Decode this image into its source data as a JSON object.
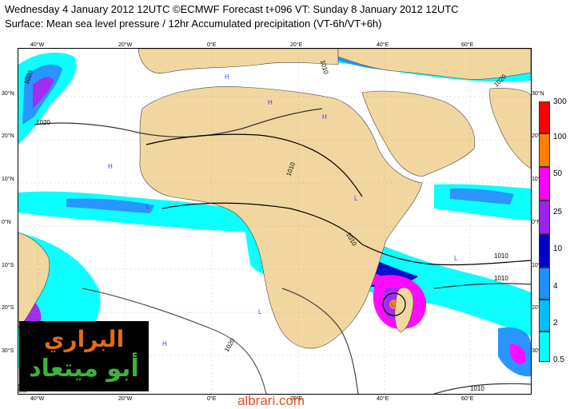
{
  "header": {
    "line1": "Wednesday 4 January 2012 12UTC ©ECMWF Forecast t+096 VT: Sunday 8 January 2012 12UTC",
    "line2": "Surface: Mean sea level pressure / 12hr Accumulated precipitation (VT-6h/VT+6h)"
  },
  "axes": {
    "lon_top": [
      "40°W",
      "20°W",
      "0°E",
      "20°E",
      "40°E",
      "60°E"
    ],
    "lon_bottom": [
      "40°W",
      "20°W",
      "0°E",
      "20°E",
      "40°E",
      "60°E"
    ],
    "lat_left": [
      "30°N",
      "20°N",
      "10°N",
      "0°N",
      "10°S",
      "20°S",
      "30°S"
    ],
    "lat_right": [
      "30°N",
      "20°N",
      "10°N",
      "0°N",
      "10°S",
      "20°S",
      "30°S"
    ]
  },
  "isobar_labels": [
    "1020",
    "1020",
    "1010",
    "1010",
    "1010",
    "1010",
    "1010",
    "1020",
    "1020",
    "1010"
  ],
  "pressure_centers": [
    "H",
    "H",
    "H",
    "H",
    "H",
    "L",
    "L",
    "L",
    "L",
    "L"
  ],
  "legend": {
    "levels": [
      "300",
      "100",
      "50",
      "25",
      "10",
      "4",
      "2",
      "0.5"
    ],
    "colors": [
      "#ff0000",
      "#ff7f00",
      "#ff00ff",
      "#a020f0",
      "#0000cd",
      "#1e90ff",
      "#00bfff",
      "#00ffff"
    ]
  },
  "colors": {
    "land": "#f2d6a0",
    "ocean": "#ffffff"
  },
  "watermark": {
    "arabic_line1": "البراري",
    "arabic_line2": "أبو ميتعاد",
    "site": "albrari.com"
  }
}
